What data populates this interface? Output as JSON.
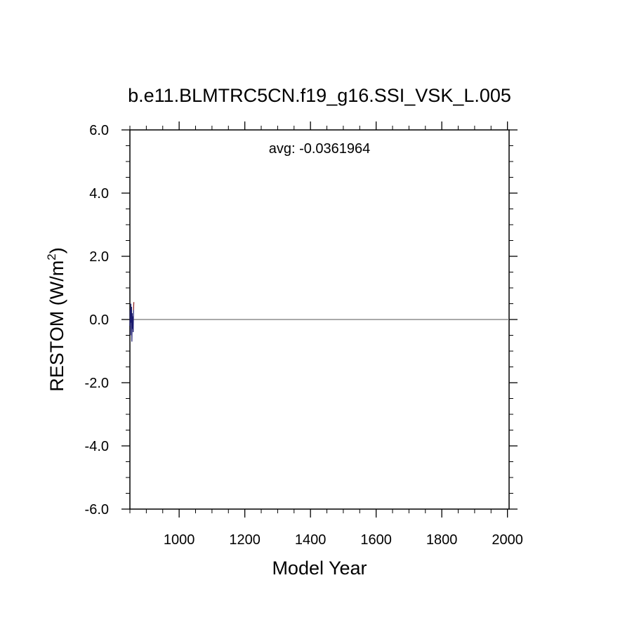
{
  "chart_data": {
    "type": "line",
    "title": "b.e11.BLMTRC5CN.f19_g16.SSI_VSK_L.005",
    "xlabel": "Model Year",
    "ylabel_main": "RESTOM (W/m",
    "ylabel_sup": "2",
    "ylabel_close": ")",
    "annotation": "avg: -0.0361964",
    "xlim": [
      850,
      2005
    ],
    "ylim": [
      -6.0,
      6.0
    ],
    "x_major_ticks": [
      1000,
      1200,
      1400,
      1600,
      1800,
      2000
    ],
    "x_tick_labels": [
      "1000",
      "1200",
      "1400",
      "1600",
      "1800",
      "2000"
    ],
    "x_minor_step": 50,
    "y_major_ticks": [
      -6.0,
      -4.0,
      -2.0,
      0.0,
      2.0,
      4.0,
      6.0
    ],
    "y_tick_labels": [
      "-6.0",
      "-4.0",
      "-2.0",
      "0.0",
      "2.0",
      "4.0",
      "6.0"
    ],
    "y_minor_step": 0.5,
    "zero_line": 0.0,
    "grid": false,
    "series": [
      {
        "color": "#1a1a6e",
        "x": [
          850,
          851,
          852,
          853,
          854,
          855,
          856,
          857,
          858,
          859,
          860,
          861
        ],
        "y": [
          -0.2,
          0.3,
          -0.5,
          0.5,
          -0.1,
          0.4,
          -0.7,
          0.2,
          -0.3,
          0.1,
          -0.4,
          0.3
        ]
      },
      {
        "color": "#8b1a1a",
        "x": [
          861,
          862
        ],
        "y": [
          0.3,
          0.55
        ]
      }
    ]
  }
}
